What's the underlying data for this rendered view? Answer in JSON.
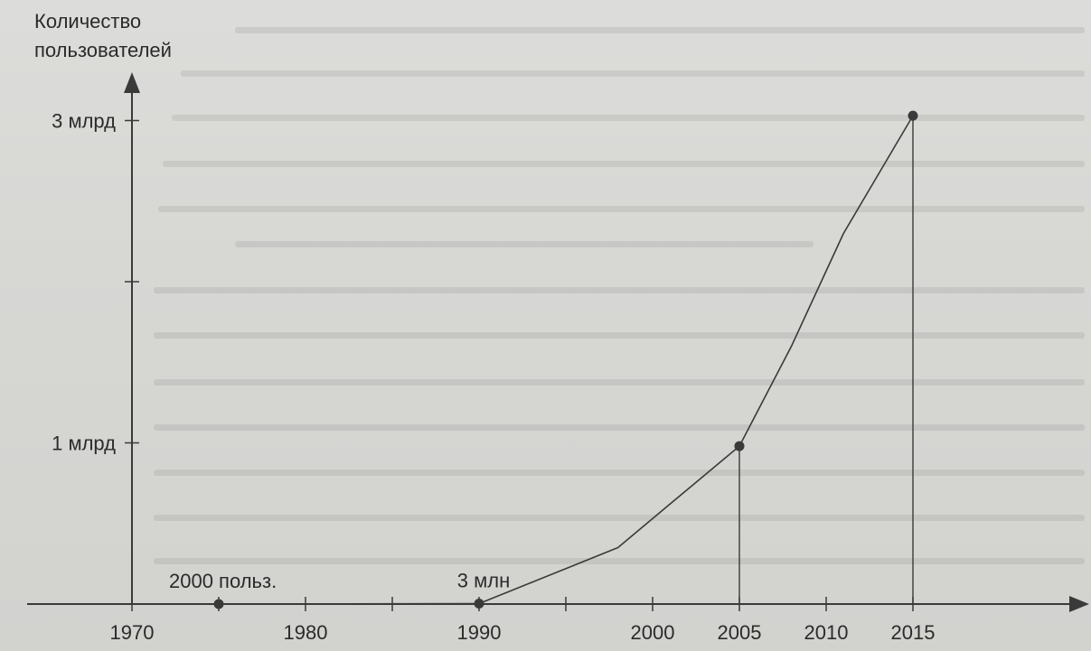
{
  "chart_data": {
    "type": "line",
    "ylabel": "Количество\nпользователей",
    "xlabel": "",
    "x_ticks": [
      {
        "value": 1970,
        "label": "1970"
      },
      {
        "value": 1980,
        "label": "1980"
      },
      {
        "value": 1990,
        "label": "1990"
      },
      {
        "value": 2000,
        "label": "2000"
      },
      {
        "value": 2005,
        "label": "2005"
      },
      {
        "value": 2010,
        "label": "2010"
      },
      {
        "value": 2015,
        "label": "2015"
      }
    ],
    "x_minor_ticks": [
      1975,
      1985,
      1995
    ],
    "y_ticks": [
      {
        "value": 0,
        "label": ""
      },
      {
        "value": 1000000000,
        "label": "1 млрд"
      },
      {
        "value": 2000000000,
        "label": ""
      },
      {
        "value": 3000000000,
        "label": "3 млрд"
      }
    ],
    "xlim": [
      1970,
      2024
    ],
    "ylim": [
      0,
      3300000000
    ],
    "series": [
      {
        "points": [
          {
            "x": 1975,
            "y": 2000
          },
          {
            "x": 1990,
            "y": 3000000
          },
          {
            "x": 1998,
            "y": 350000000
          },
          {
            "x": 2001,
            "y": 620000000
          },
          {
            "x": 2005,
            "y": 980000000
          },
          {
            "x": 2008,
            "y": 1600000000
          },
          {
            "x": 2011,
            "y": 2300000000
          },
          {
            "x": 2015,
            "y": 3030000000
          }
        ]
      }
    ],
    "highlighted_points": [
      {
        "x": 1975,
        "y": 2000,
        "label": "2000 польз.",
        "drop_line": false
      },
      {
        "x": 1990,
        "y": 3000000,
        "label": "3 млн",
        "drop_line": false
      },
      {
        "x": 2005,
        "y": 980000000,
        "label": "",
        "drop_line": true
      },
      {
        "x": 2015,
        "y": 3030000000,
        "label": "",
        "drop_line": true
      }
    ],
    "grid": false,
    "colors": {
      "line": "#3a3a3a",
      "marker": "#3a3a3a",
      "background": "#d8d8d5"
    }
  }
}
